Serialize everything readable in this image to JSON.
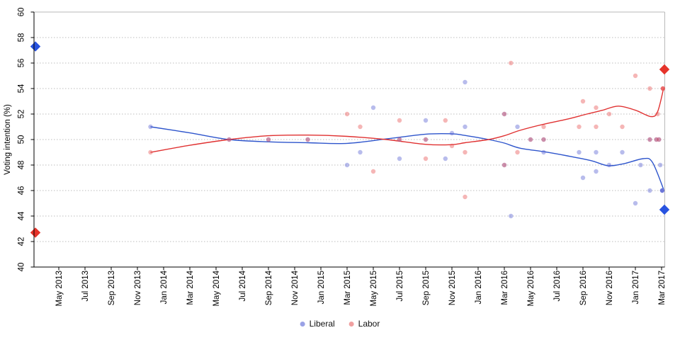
{
  "chart_data": {
    "type": "scatter",
    "title": "",
    "ylabel": "Voting intention (%)",
    "ylim": [
      40,
      60
    ],
    "yticks": [
      40,
      42,
      44,
      46,
      48,
      50,
      52,
      54,
      56,
      58,
      60
    ],
    "grid": "dotted horizontal gridlines at each y tick, light gray; solid light top and right border",
    "x_axis_note": "month index 0 = May 2013, one tick every 2 months, last tick Mar 2017",
    "x_tick_labels": [
      "May 2013",
      "Jul 2013",
      "Sep 2013",
      "Nov 2013",
      "Jan 2014",
      "Mar 2014",
      "May 2014",
      "Jul 2014",
      "Sep 2014",
      "Nov 2014",
      "Jan 2015",
      "Mar 2015",
      "May 2015",
      "Jul 2015",
      "Sep 2015",
      "Nov 2015",
      "Jan 2016",
      "Mar 2016",
      "May 2016",
      "Jul 2016",
      "Sep 2016",
      "Nov 2016",
      "Jan 2017",
      "Mar 2017"
    ],
    "legend_position": "bottom center",
    "series": [
      {
        "name": "Liberal",
        "line_color": "#2e55cc",
        "point_color": "#5560d2",
        "legend_color": "#9aa2e6",
        "points_mi_value_weight": [
          [
            7,
            51,
            1
          ],
          [
            13,
            50,
            1
          ],
          [
            16,
            50,
            1
          ],
          [
            19,
            50,
            1
          ],
          [
            22,
            48,
            1
          ],
          [
            23,
            49,
            1
          ],
          [
            24,
            52.5,
            1
          ],
          [
            26,
            48.5,
            1
          ],
          [
            26,
            50,
            1
          ],
          [
            28,
            51.5,
            1
          ],
          [
            28,
            50,
            1
          ],
          [
            29.5,
            48.5,
            1
          ],
          [
            30,
            50.5,
            1
          ],
          [
            31,
            51,
            1
          ],
          [
            31,
            54.5,
            1
          ],
          [
            34,
            48,
            1
          ],
          [
            34,
            52,
            1
          ],
          [
            34.5,
            44,
            1
          ],
          [
            35,
            51,
            1
          ],
          [
            36,
            50,
            1
          ],
          [
            37,
            50,
            1
          ],
          [
            37,
            49,
            1
          ],
          [
            39.7,
            49,
            1
          ],
          [
            40,
            47,
            1
          ],
          [
            41,
            49,
            1
          ],
          [
            41,
            47.5,
            1
          ],
          [
            42,
            48,
            1
          ],
          [
            43,
            49,
            1
          ],
          [
            44,
            45,
            1
          ],
          [
            44.4,
            48,
            1
          ],
          [
            45.1,
            50,
            1
          ],
          [
            45.1,
            46,
            1
          ],
          [
            45.6,
            50,
            1
          ],
          [
            45.8,
            50,
            1
          ],
          [
            45.9,
            48,
            1
          ],
          [
            46.05,
            46,
            2
          ]
        ],
        "trend_line_mi_value": [
          [
            7,
            51
          ],
          [
            10,
            50.52
          ],
          [
            13,
            50
          ],
          [
            16,
            49.82
          ],
          [
            19,
            49.75
          ],
          [
            22,
            49.7
          ],
          [
            25,
            50.05
          ],
          [
            28,
            50.42
          ],
          [
            30,
            50.45
          ],
          [
            31,
            50.32
          ],
          [
            32.8,
            50.0
          ],
          [
            34,
            49.72
          ],
          [
            35.2,
            49.32
          ],
          [
            37,
            49.05
          ],
          [
            38.8,
            48.72
          ],
          [
            40.6,
            48.35
          ],
          [
            41.9,
            47.95
          ],
          [
            43.1,
            48.1
          ],
          [
            44.6,
            48.5
          ],
          [
            45.3,
            48.22
          ],
          [
            46.15,
            46.1
          ]
        ]
      },
      {
        "name": "Labor",
        "line_color": "#e03131",
        "point_color": "#e85050",
        "legend_color": "#f0a0a0",
        "points_mi_value_weight": [
          [
            7,
            49,
            1
          ],
          [
            13,
            50,
            1
          ],
          [
            16,
            50,
            1
          ],
          [
            19,
            50,
            1
          ],
          [
            22,
            52,
            1
          ],
          [
            23,
            51,
            1
          ],
          [
            24,
            47.5,
            1
          ],
          [
            26,
            51.5,
            1
          ],
          [
            26,
            50,
            1
          ],
          [
            28,
            48.5,
            1
          ],
          [
            28,
            50,
            1
          ],
          [
            29.5,
            51.5,
            1
          ],
          [
            30,
            49.5,
            1
          ],
          [
            31,
            49,
            1
          ],
          [
            31,
            45.5,
            1
          ],
          [
            34,
            52,
            1
          ],
          [
            34,
            48,
            1
          ],
          [
            34.5,
            56,
            1
          ],
          [
            35,
            49,
            1
          ],
          [
            36,
            50,
            1
          ],
          [
            37,
            50,
            1
          ],
          [
            37,
            51,
            1
          ],
          [
            39.7,
            51,
            1
          ],
          [
            40,
            53,
            1
          ],
          [
            41,
            51,
            1
          ],
          [
            41,
            52.5,
            1
          ],
          [
            42,
            52,
            1
          ],
          [
            43,
            51,
            1
          ],
          [
            44,
            55,
            1
          ],
          [
            45.1,
            50,
            1
          ],
          [
            45.1,
            54,
            1
          ],
          [
            45.6,
            50,
            1
          ],
          [
            45.8,
            50,
            1
          ],
          [
            45.7,
            52,
            1
          ],
          [
            46.1,
            54,
            2
          ]
        ],
        "trend_line_mi_value": [
          [
            7,
            49
          ],
          [
            10,
            49.55
          ],
          [
            13,
            50
          ],
          [
            16,
            50.3
          ],
          [
            19,
            50.35
          ],
          [
            22,
            50.25
          ],
          [
            25,
            50.0
          ],
          [
            28,
            49.62
          ],
          [
            30,
            49.6
          ],
          [
            31,
            49.75
          ],
          [
            32.8,
            50.0
          ],
          [
            34,
            50.3
          ],
          [
            35.2,
            50.72
          ],
          [
            37,
            51.2
          ],
          [
            38.8,
            51.6
          ],
          [
            40.3,
            52.0
          ],
          [
            41.5,
            52.3
          ],
          [
            42.7,
            52.62
          ],
          [
            44,
            52.3
          ],
          [
            45.2,
            51.8
          ],
          [
            45.7,
            52.2
          ],
          [
            46.15,
            54.0
          ]
        ]
      }
    ],
    "edge_markers": [
      {
        "name": "left-edge-blue-diamond",
        "edge": "left",
        "value": 57.3,
        "color": "#2853e0"
      },
      {
        "name": "left-edge-red-diamond",
        "edge": "left",
        "value": 42.7,
        "color": "#e5332a"
      },
      {
        "name": "right-edge-red-diamond",
        "edge": "right",
        "value": 55.5,
        "color": "#e5332a"
      },
      {
        "name": "right-edge-blue-diamond",
        "edge": "right",
        "value": 44.5,
        "color": "#2853e0"
      }
    ]
  }
}
